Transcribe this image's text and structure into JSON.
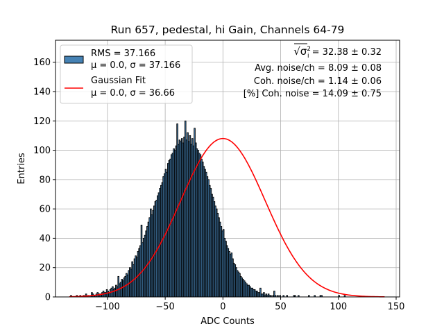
{
  "chart_data": {
    "type": "bar",
    "title": "Run 657, pedestal, hi Gain, Channels 64-79",
    "xlabel": "ADC Counts",
    "ylabel": "Entries",
    "xlim": [
      -145,
      153
    ],
    "ylim": [
      0,
      175
    ],
    "xticks": [
      -100,
      -50,
      0,
      50,
      100,
      150
    ],
    "xtick_labels": [
      "−100",
      "−50",
      "0",
      "50",
      "100",
      "150"
    ],
    "yticks": [
      0,
      20,
      40,
      60,
      80,
      100,
      120,
      140,
      160
    ],
    "ytick_labels": [
      "0",
      "20",
      "40",
      "60",
      "80",
      "100",
      "120",
      "140",
      "160"
    ],
    "grid": true,
    "legend_position": "top-left",
    "bar_color": "#4682b4",
    "bar_edge_color": "#000000",
    "fit_color": "#ff0000",
    "bin_width": 1,
    "bin_start": -133,
    "series": [
      {
        "name": "RMS = 37.166",
        "legend_line2": "μ = 0.0, σ = 37.166",
        "kind": "histogram",
        "values": [
          0,
          1,
          0,
          0,
          0,
          0,
          1,
          0,
          0,
          1,
          0,
          0,
          1,
          0,
          2,
          0,
          1,
          0,
          1,
          3,
          2,
          1,
          1,
          2,
          3,
          2,
          2,
          2,
          3,
          4,
          3,
          3,
          5,
          4,
          3,
          5,
          6,
          7,
          5,
          6,
          8,
          7,
          14,
          9,
          10,
          12,
          11,
          13,
          14,
          16,
          15,
          18,
          20,
          19,
          24,
          22,
          26,
          28,
          27,
          31,
          33,
          35,
          49,
          37,
          40,
          42,
          45,
          48,
          51,
          54,
          60,
          56,
          59,
          62,
          65,
          66,
          69,
          71,
          74,
          76,
          78,
          82,
          84,
          87,
          85,
          91,
          93,
          94,
          97,
          98,
          101,
          100,
          103,
          118,
          104,
          107,
          106,
          108,
          105,
          109,
          120,
          107,
          112,
          106,
          110,
          104,
          108,
          103,
          115,
          105,
          101,
          100,
          98,
          97,
          94,
          92,
          89,
          87,
          85,
          82,
          80,
          76,
          74,
          70,
          68,
          65,
          62,
          60,
          57,
          54,
          51,
          48,
          45,
          46,
          40,
          38,
          35,
          33,
          31,
          29,
          30,
          26,
          23,
          22,
          20,
          18,
          17,
          16,
          14,
          13,
          12,
          11,
          10,
          9,
          8,
          8,
          7,
          6,
          6,
          5,
          5,
          4,
          4,
          3,
          3,
          6,
          2,
          2,
          3,
          1,
          2,
          1,
          2,
          1,
          1,
          0,
          1,
          4,
          1,
          0,
          1,
          0,
          1,
          0,
          0,
          1,
          0,
          0,
          1,
          0,
          0,
          0,
          0,
          0,
          1,
          1,
          0,
          0,
          1,
          0,
          0,
          0,
          0,
          0,
          0,
          0,
          0,
          1,
          0,
          0,
          0,
          0,
          1,
          0,
          0,
          0,
          0,
          1,
          1,
          0,
          0,
          0,
          0,
          0,
          0,
          0,
          0,
          0,
          0,
          0,
          0,
          0,
          0,
          1,
          0,
          0,
          0,
          0,
          1,
          0,
          0,
          0,
          0,
          0,
          0,
          0,
          0,
          0,
          0,
          0,
          0,
          0,
          0,
          0,
          0,
          0,
          0,
          0,
          0,
          0,
          0,
          0,
          0,
          0,
          0,
          0,
          0,
          0,
          0,
          0,
          0,
          0,
          0,
          0,
          0,
          0,
          0,
          0
        ]
      },
      {
        "name": "Gaussian Fit",
        "legend_line2": "μ = 0.0, σ = 36.66",
        "kind": "line",
        "mu": 0.0,
        "sigma": 36.66,
        "amplitude": 108,
        "x_range": [
          -133,
          140
        ]
      }
    ],
    "annotations": [
      {
        "prefix": "√σ",
        "sub": "i",
        "sup": "2",
        "text": " = 32.38 ± 0.32"
      },
      {
        "text": "Avg. noise/ch = 8.09 ± 0.08"
      },
      {
        "text": "Coh. noise/ch = 1.14 ± 0.06"
      },
      {
        "text": "[%] Coh. noise = 14.09 ± 0.75"
      }
    ]
  }
}
